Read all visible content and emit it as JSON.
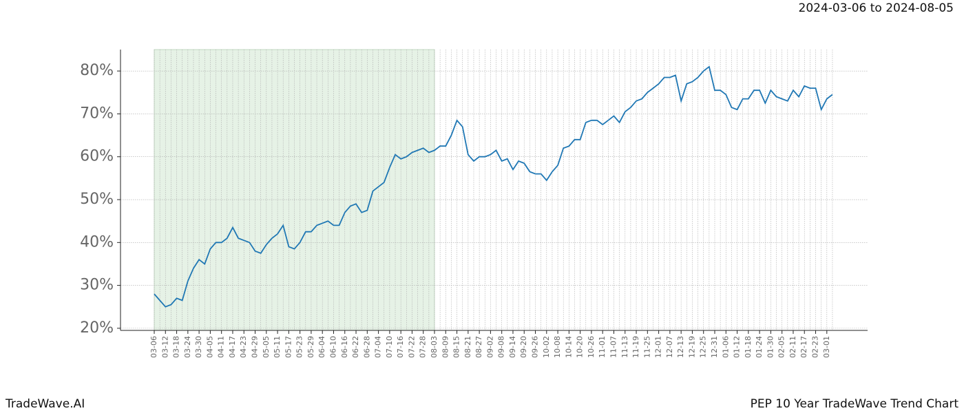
{
  "chart_data": {
    "type": "line",
    "title": "2024-03-06 to 2024-08-05",
    "footer_left": "TradeWave.AI",
    "footer_right": "PEP 10 Year TradeWave Trend Chart",
    "categories": [
      "03-06",
      null,
      "03-12",
      null,
      "03-18",
      null,
      "03-24",
      null,
      "03-30",
      null,
      "04-05",
      null,
      "04-11",
      null,
      "04-17",
      null,
      "04-23",
      null,
      "04-29",
      null,
      "05-05",
      null,
      "05-11",
      null,
      "05-17",
      null,
      "05-23",
      null,
      "05-29",
      null,
      "06-04",
      null,
      "06-10",
      null,
      "06-16",
      null,
      "06-22",
      null,
      "06-28",
      null,
      "07-04",
      null,
      "07-10",
      null,
      "07-16",
      null,
      "07-22",
      null,
      "07-28",
      null,
      "08-03",
      null,
      "08-09",
      null,
      "08-15",
      null,
      "08-21",
      null,
      "08-27",
      null,
      "09-02",
      null,
      "09-08",
      null,
      "09-14",
      null,
      "09-20",
      null,
      "09-26",
      null,
      "10-02",
      null,
      "10-08",
      null,
      "10-14",
      null,
      "10-20",
      null,
      "10-26",
      null,
      "11-01",
      null,
      "11-07",
      null,
      "11-13",
      null,
      "11-19",
      null,
      "11-25",
      null,
      "12-01",
      null,
      "12-07",
      null,
      "12-13",
      null,
      "12-19",
      null,
      "12-25",
      null,
      "12-31",
      null,
      "01-06",
      null,
      "01-12",
      null,
      "01-18",
      null,
      "01-24",
      null,
      "01-30",
      null,
      "02-05",
      null,
      "02-11",
      null,
      "02-17",
      null,
      "02-23",
      null,
      "03-01",
      null
    ],
    "series": [
      {
        "color": "#1f77b4",
        "values": [
          28,
          26.5,
          25,
          25.5,
          27,
          26.5,
          31,
          34,
          36,
          35,
          38.5,
          40,
          40,
          41,
          43.5,
          41,
          40.5,
          40,
          38,
          37.5,
          39.5,
          41,
          42,
          44,
          39,
          38.5,
          40,
          42.5,
          42.5,
          44,
          44.5,
          45,
          44,
          44,
          47,
          48.5,
          49,
          47,
          47.5,
          52,
          53,
          54,
          57.5,
          60.5,
          59.5,
          60,
          61,
          61.5,
          62,
          61,
          61.5,
          62.5,
          62.5,
          65,
          68.5,
          67,
          60.5,
          59,
          60,
          60,
          60.5,
          61.5,
          59,
          59.5,
          57,
          59,
          58.5,
          56.5,
          56,
          56,
          54.5,
          56.5,
          58,
          62,
          62.5,
          64,
          64,
          68,
          68.5,
          68.5,
          67.5,
          68.5,
          69.5,
          68,
          70.5,
          71.5,
          73,
          73.5,
          75,
          76,
          77,
          78.5,
          78.5,
          79,
          73,
          77,
          77.5,
          78.5,
          80,
          81,
          75.5,
          75.5,
          74.5,
          71.5,
          71,
          73.5,
          73.5,
          75.5,
          75.5,
          72.5,
          75.5,
          74,
          73.5,
          73,
          75.5,
          74,
          76.5,
          76,
          76,
          71,
          73.5,
          74.5
        ]
      }
    ],
    "ylim": [
      19.5,
      85
    ],
    "yticks": [
      {
        "value": 20,
        "label": "20%"
      },
      {
        "value": 30,
        "label": "30%"
      },
      {
        "value": 40,
        "label": "40%"
      },
      {
        "value": 50,
        "label": "50%"
      },
      {
        "value": 60,
        "label": "60%"
      },
      {
        "value": 70,
        "label": "70%"
      },
      {
        "value": 80,
        "label": "80%"
      }
    ],
    "grid": true,
    "shade": {
      "from": 0,
      "to": 50,
      "color": "#e6f2e6"
    }
  }
}
